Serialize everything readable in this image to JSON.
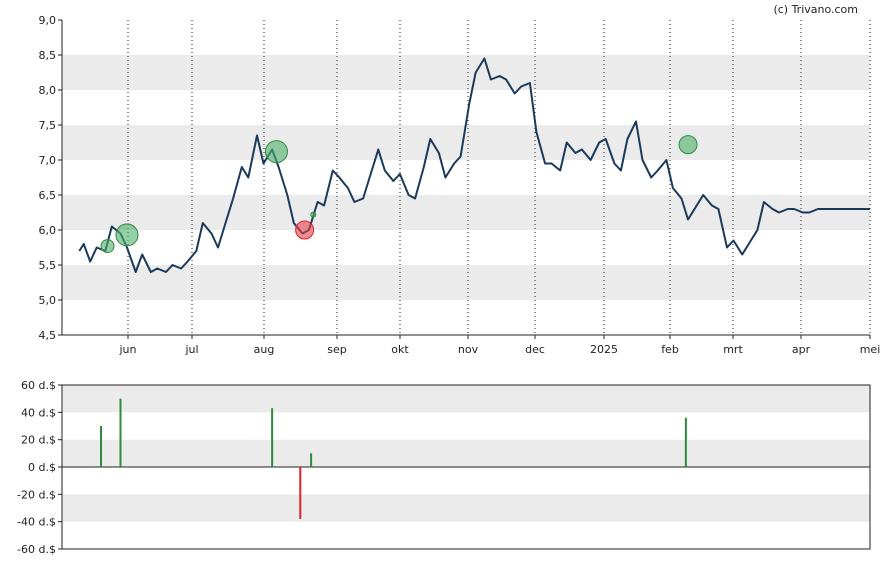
{
  "credit": "(c) Trivano.com",
  "colors": {
    "price_line": "#1a3a5c",
    "band": "#ebebeb",
    "buy": "#2e8b3e",
    "sell": "#e0202a",
    "buy_circle": "#4caf6a",
    "sell_circle": "#e8404a"
  },
  "chart_data": [
    {
      "type": "line",
      "ylim": [
        4.5,
        9.0
      ],
      "y_ticks": [
        "9,0",
        "8,5",
        "8,0",
        "7,5",
        "7,0",
        "6,5",
        "6,0",
        "5,5",
        "5,0",
        "4,5"
      ],
      "x_ticks": [
        "jun",
        "jul",
        "aug",
        "sep",
        "okt",
        "nov",
        "dec",
        "2025",
        "feb",
        "mrt",
        "apr",
        "mei"
      ],
      "grid": true,
      "series": [
        {
          "x": [
            "2024-05-01",
            "2024-05-03",
            "2024-05-06",
            "2024-05-09",
            "2024-05-13",
            "2024-05-16",
            "2024-05-20",
            "2024-05-23",
            "2024-05-27",
            "2024-05-30",
            "2024-06-03",
            "2024-06-06",
            "2024-06-10",
            "2024-06-13",
            "2024-06-17",
            "2024-06-20",
            "2024-06-24",
            "2024-06-27",
            "2024-07-01",
            "2024-07-04",
            "2024-07-08",
            "2024-07-11",
            "2024-07-15",
            "2024-07-18",
            "2024-07-22",
            "2024-07-25",
            "2024-07-29",
            "2024-08-01",
            "2024-08-05",
            "2024-08-08",
            "2024-08-12",
            "2024-08-15",
            "2024-08-19",
            "2024-08-22",
            "2024-08-26",
            "2024-08-29",
            "2024-09-02",
            "2024-09-05",
            "2024-09-09",
            "2024-09-12",
            "2024-09-16",
            "2024-09-19",
            "2024-09-23",
            "2024-09-26",
            "2024-09-30",
            "2024-10-03",
            "2024-10-07",
            "2024-10-10",
            "2024-10-14",
            "2024-10-17",
            "2024-10-21",
            "2024-10-24",
            "2024-10-28",
            "2024-10-31",
            "2024-11-04",
            "2024-11-07",
            "2024-11-11",
            "2024-11-14",
            "2024-11-18",
            "2024-11-21",
            "2024-11-25",
            "2024-11-28",
            "2024-12-02",
            "2024-12-05",
            "2024-12-09",
            "2024-12-12",
            "2024-12-16",
            "2024-12-19",
            "2024-12-23",
            "2024-12-27",
            "2024-12-30",
            "2025-01-03",
            "2025-01-06",
            "2025-01-09",
            "2025-01-13",
            "2025-01-16",
            "2025-01-20",
            "2025-01-23",
            "2025-01-27",
            "2025-01-30",
            "2025-02-03",
            "2025-02-06",
            "2025-02-10",
            "2025-02-13",
            "2025-02-17",
            "2025-02-20",
            "2025-02-24",
            "2025-02-27",
            "2025-03-03",
            "2025-03-06",
            "2025-03-10",
            "2025-03-13",
            "2025-03-17",
            "2025-03-20",
            "2025-03-24",
            "2025-03-27",
            "2025-03-31",
            "2025-04-03",
            "2025-04-07",
            "2025-04-10",
            "2025-04-14",
            "2025-04-17",
            "2025-04-22",
            "2025-04-25",
            "2025-04-29",
            "2025-05-01"
          ],
          "values": [
            5.7,
            5.8,
            5.55,
            5.75,
            5.7,
            6.05,
            5.95,
            5.75,
            5.4,
            5.65,
            5.4,
            5.45,
            5.4,
            5.5,
            5.45,
            5.55,
            5.7,
            6.1,
            5.95,
            5.75,
            6.15,
            6.45,
            6.9,
            6.75,
            7.35,
            6.95,
            7.15,
            6.9,
            6.5,
            6.1,
            5.95,
            6.0,
            6.4,
            6.35,
            6.85,
            6.75,
            6.6,
            6.4,
            6.45,
            6.75,
            7.15,
            6.85,
            6.7,
            6.8,
            6.5,
            6.45,
            6.9,
            7.3,
            7.1,
            6.75,
            6.95,
            7.05,
            7.8,
            8.25,
            8.45,
            8.15,
            8.2,
            8.15,
            7.95,
            8.05,
            8.1,
            7.4,
            6.95,
            6.95,
            6.85,
            7.25,
            7.1,
            7.15,
            7.0,
            7.25,
            7.3,
            6.95,
            6.85,
            7.3,
            7.55,
            7.0,
            6.75,
            6.85,
            7.0,
            6.6,
            6.45,
            6.15,
            6.35,
            6.5,
            6.35,
            6.3,
            5.75,
            5.85,
            5.65,
            5.8,
            6.0,
            6.4,
            6.3,
            6.25,
            6.3,
            6.3,
            6.25,
            6.25,
            6.3,
            6.3,
            6.3,
            6.3,
            6.3,
            6.3,
            6.3,
            6.3
          ]
        }
      ],
      "markers": [
        {
          "date": "2024-05-14",
          "value": 5.77,
          "kind": "buy",
          "size": "small"
        },
        {
          "date": "2024-05-23",
          "value": 5.93,
          "kind": "buy",
          "size": "large"
        },
        {
          "date": "2024-07-31",
          "value": 7.12,
          "kind": "buy",
          "size": "large"
        },
        {
          "date": "2024-08-13",
          "value": 6.0,
          "kind": "sell",
          "size": "medium"
        },
        {
          "date": "2024-08-17",
          "value": 6.22,
          "kind": "buy",
          "size": "tiny"
        },
        {
          "date": "2025-02-06",
          "value": 7.22,
          "kind": "buy",
          "size": "medium"
        }
      ]
    },
    {
      "type": "bar",
      "ylim": [
        -60,
        60
      ],
      "y_ticks": [
        "60 d.$",
        "40 d.$",
        "20 d.$",
        "0 d.$",
        "-20 d.$",
        "-40 d.$",
        "-60 d.$"
      ],
      "grid": true,
      "bars": [
        {
          "date": "2024-05-11",
          "value": 30
        },
        {
          "date": "2024-05-20",
          "value": 50
        },
        {
          "date": "2024-07-29",
          "value": 43
        },
        {
          "date": "2024-08-11",
          "value": -38
        },
        {
          "date": "2024-08-16",
          "value": 10
        },
        {
          "date": "2025-02-05",
          "value": 36
        }
      ]
    }
  ]
}
